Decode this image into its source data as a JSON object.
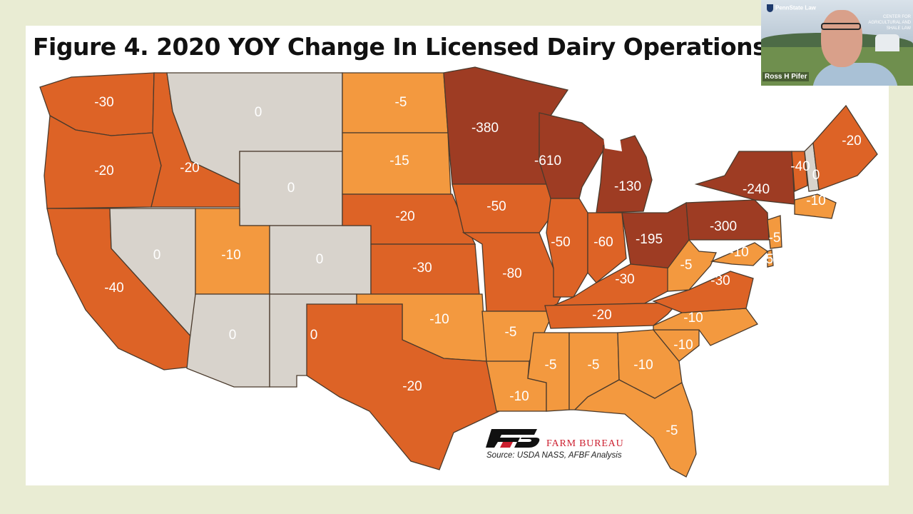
{
  "title": "Figure 4. 2020 YOY Change In Licensed Dairy Operations",
  "colors": {
    "background": "#e9ecd3",
    "zero": "#d8d3cc",
    "light_decline": "#f3993f",
    "moderate_decline": "#dd6326",
    "large_decline": "#9e3c23"
  },
  "states": {
    "WA": "-30",
    "OR": "-20",
    "CA": "-40",
    "ID": "-20",
    "NV": "0",
    "MT": "0",
    "WY": "0",
    "UT": "-10",
    "AZ": "0",
    "CO": "0",
    "NM": "0",
    "ND": "-5",
    "SD": "-15",
    "NE": "-20",
    "KS": "-30",
    "OK": "-10",
    "TX": "-20",
    "MN": "-380",
    "IA": "-50",
    "MO": "-80",
    "AR": "-5",
    "LA": "-10",
    "WI": "-610",
    "IL": "-50",
    "MI": "-130",
    "IN": "-60",
    "OH": "-195",
    "KY": "-30",
    "TN": "-20",
    "MS": "-5",
    "AL": "-5",
    "GA": "-10",
    "FL": "-5",
    "SC": "-10",
    "NC": "-10",
    "VA": "-30",
    "WV": "-5",
    "PA": "-300",
    "NY": "-240",
    "VT": "-40",
    "NH": "0",
    "ME": "-20",
    "MA": "-10",
    "NJ": "-5",
    "MD": "-10",
    "DE": "5"
  },
  "logo": {
    "name": "FARM BUREAU",
    "source": "Source:  USDA NASS, AFBF Analysis"
  },
  "webcam": {
    "org": "PennState Law",
    "center": "CENTER FOR AGRICULTURAL AND SHALE LAW",
    "name": "Ross H Pifer"
  }
}
